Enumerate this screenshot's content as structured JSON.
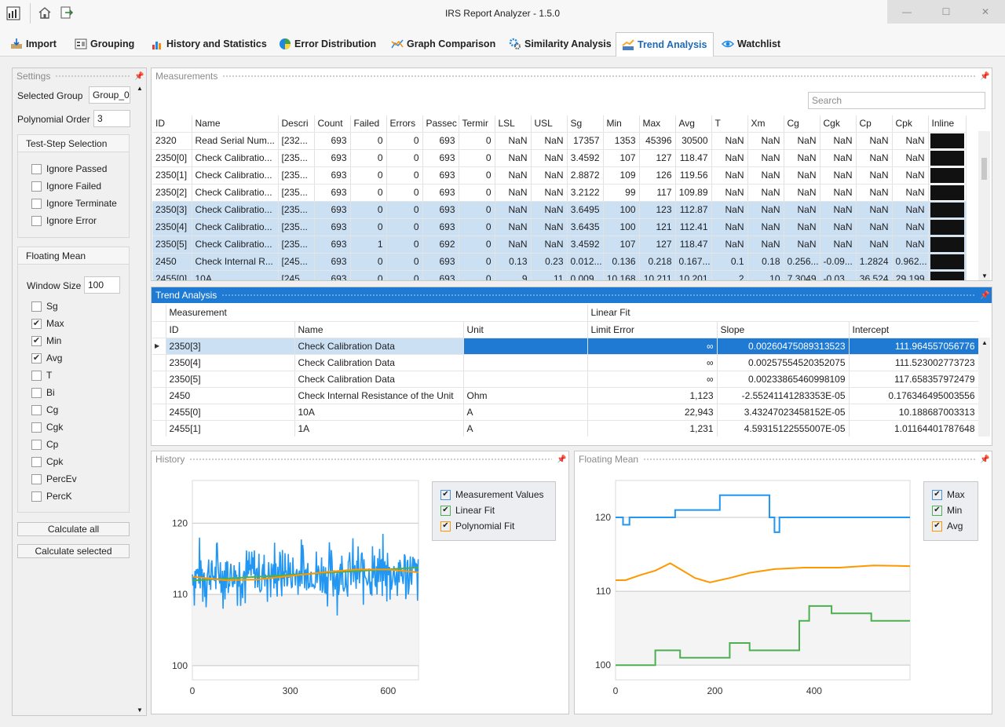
{
  "app": {
    "title": "IRS Report Analyzer - 1.5.0",
    "window_buttons": [
      "—",
      "☐",
      "✕"
    ]
  },
  "tabs": [
    {
      "label": "Import",
      "icon": "import-icon"
    },
    {
      "label": "Grouping",
      "icon": "grouping-icon"
    },
    {
      "label": "History and Statistics",
      "icon": "history-icon"
    },
    {
      "label": "Error Distribution",
      "icon": "pie-icon"
    },
    {
      "label": "Graph Comparison",
      "icon": "graph-compare-icon"
    },
    {
      "label": "Similarity Analysis",
      "icon": "gears-icon"
    },
    {
      "label": "Trend Analysis",
      "icon": "trend-icon",
      "active": true
    },
    {
      "label": "Watchlist",
      "icon": "eye-icon"
    }
  ],
  "settings": {
    "header": "Settings",
    "selected_group_label": "Selected Group",
    "selected_group_value": "Group_0",
    "polynomial_order_label": "Polynomial Order",
    "polynomial_order_value": "3",
    "test_step_header": "Test-Step Selection",
    "test_step_options": [
      {
        "label": "Ignore Passed",
        "checked": false
      },
      {
        "label": "Ignore Failed",
        "checked": false
      },
      {
        "label": "Ignore Terminate",
        "checked": false
      },
      {
        "label": "Ignore Error",
        "checked": false
      }
    ],
    "floating_mean_header": "Floating Mean",
    "window_size_label": "Window Size",
    "window_size_value": "100",
    "metrics": [
      {
        "label": "Sg",
        "checked": false
      },
      {
        "label": "Max",
        "checked": true
      },
      {
        "label": "Min",
        "checked": true
      },
      {
        "label": "Avg",
        "checked": true
      },
      {
        "label": "T",
        "checked": false
      },
      {
        "label": "Bi",
        "checked": false
      },
      {
        "label": "Cg",
        "checked": false
      },
      {
        "label": "Cgk",
        "checked": false
      },
      {
        "label": "Cp",
        "checked": false
      },
      {
        "label": "Cpk",
        "checked": false
      },
      {
        "label": "PercEv",
        "checked": false
      },
      {
        "label": "PercK",
        "checked": false
      }
    ],
    "calculate_all": "Calculate all",
    "calculate_selected": "Calculate selected"
  },
  "measurements": {
    "header": "Measurements",
    "search_placeholder": "Search",
    "columns": [
      "ID",
      "Name",
      "Descri",
      "Count",
      "Failed",
      "Errors",
      "Passec",
      "Termir",
      "LSL",
      "USL",
      "Sg",
      "Min",
      "Max",
      "Avg",
      "T",
      "Xm",
      "Cg",
      "Cgk",
      "Cp",
      "Cpk",
      "Inline"
    ],
    "rows": [
      {
        "sel": false,
        "cells": [
          "2320",
          "Read Serial Num...",
          "[232...",
          "693",
          "0",
          "0",
          "693",
          "0",
          "NaN",
          "NaN",
          "17357",
          "1353",
          "45396",
          "30500",
          "NaN",
          "NaN",
          "NaN",
          "NaN",
          "NaN",
          "NaN"
        ]
      },
      {
        "sel": false,
        "cells": [
          "2350[0]",
          "Check Calibratio...",
          "[235...",
          "693",
          "0",
          "0",
          "693",
          "0",
          "NaN",
          "NaN",
          "3.4592",
          "107",
          "127",
          "118.47",
          "NaN",
          "NaN",
          "NaN",
          "NaN",
          "NaN",
          "NaN"
        ]
      },
      {
        "sel": false,
        "cells": [
          "2350[1]",
          "Check Calibratio...",
          "[235...",
          "693",
          "0",
          "0",
          "693",
          "0",
          "NaN",
          "NaN",
          "2.8872",
          "109",
          "126",
          "119.56",
          "NaN",
          "NaN",
          "NaN",
          "NaN",
          "NaN",
          "NaN"
        ]
      },
      {
        "sel": false,
        "cells": [
          "2350[2]",
          "Check Calibratio...",
          "[235...",
          "693",
          "0",
          "0",
          "693",
          "0",
          "NaN",
          "NaN",
          "3.2122",
          "99",
          "117",
          "109.89",
          "NaN",
          "NaN",
          "NaN",
          "NaN",
          "NaN",
          "NaN"
        ]
      },
      {
        "sel": true,
        "cells": [
          "2350[3]",
          "Check Calibratio...",
          "[235...",
          "693",
          "0",
          "0",
          "693",
          "0",
          "NaN",
          "NaN",
          "3.6495",
          "100",
          "123",
          "112.87",
          "NaN",
          "NaN",
          "NaN",
          "NaN",
          "NaN",
          "NaN"
        ]
      },
      {
        "sel": true,
        "cells": [
          "2350[4]",
          "Check Calibratio...",
          "[235...",
          "693",
          "0",
          "0",
          "693",
          "0",
          "NaN",
          "NaN",
          "3.6435",
          "100",
          "121",
          "112.41",
          "NaN",
          "NaN",
          "NaN",
          "NaN",
          "NaN",
          "NaN"
        ]
      },
      {
        "sel": true,
        "cells": [
          "2350[5]",
          "Check Calibratio...",
          "[235...",
          "693",
          "1",
          "0",
          "692",
          "0",
          "NaN",
          "NaN",
          "3.4592",
          "107",
          "127",
          "118.47",
          "NaN",
          "NaN",
          "NaN",
          "NaN",
          "NaN",
          "NaN"
        ]
      },
      {
        "sel": true,
        "cells": [
          "2450",
          "Check Internal R...",
          "[245...",
          "693",
          "0",
          "0",
          "693",
          "0",
          "0.13",
          "0.23",
          "0.012...",
          "0.136",
          "0.218",
          "0.167...",
          "0.1",
          "0.18",
          "0.256...",
          "-0.09...",
          "1.2824",
          "0.962..."
        ]
      },
      {
        "sel": true,
        "cells": [
          "2455[0]",
          "10A",
          "[245...",
          "693",
          "0",
          "0",
          "693",
          "0",
          "9",
          "11",
          "0.009...",
          "10.168",
          "10.211",
          "10.201",
          "2",
          "10",
          "7.3049",
          "-0.03...",
          "36.524",
          "29.199"
        ]
      }
    ]
  },
  "trend": {
    "header": "Trend Analysis",
    "group_measurement": "Measurement",
    "group_linear_fit": "Linear Fit",
    "columns": [
      "ID",
      "Name",
      "Unit",
      "Limit Error",
      "Slope",
      "Intercept"
    ],
    "rows": [
      {
        "current": true,
        "cells": [
          "2350[3]",
          "Check Calibration Data",
          "",
          "∞",
          "0.00260475089313523",
          "111.964557056776"
        ]
      },
      {
        "current": false,
        "cells": [
          "2350[4]",
          "Check Calibration Data",
          "",
          "∞",
          "0.00257554520352075",
          "111.523002773723"
        ]
      },
      {
        "current": false,
        "cells": [
          "2350[5]",
          "Check Calibration Data",
          "",
          "∞",
          "0.00233865460998109",
          "117.658357972479"
        ]
      },
      {
        "current": false,
        "cells": [
          "2450",
          "Check Internal Resistance of the Unit",
          "Ohm",
          "1,123",
          "-2.55241141283353E-05",
          "0.176346495003556"
        ]
      },
      {
        "current": false,
        "cells": [
          "2455[0]",
          "10A",
          "A",
          "22,943",
          "3.43247023458152E-05",
          "10.188687003313"
        ]
      },
      {
        "current": false,
        "cells": [
          "2455[1]",
          "1A",
          "A",
          "1,231",
          "4.59315122555007E-05",
          "1.01164401787648"
        ]
      }
    ]
  },
  "history": {
    "header": "History",
    "legend": [
      {
        "label": "Measurement Values",
        "color": "#2196f3"
      },
      {
        "label": "Linear Fit",
        "color": "#4caf50"
      },
      {
        "label": "Polynomial Fit",
        "color": "#ff9800"
      }
    ],
    "chart_data": {
      "type": "line",
      "xlim": [
        0,
        693
      ],
      "ylim": [
        98,
        126
      ],
      "xticks": [
        "0",
        "300",
        "600"
      ],
      "yticks": [
        "100",
        "110",
        "120"
      ],
      "series": [
        {
          "name": "Measurement Values",
          "mean": 112.87,
          "min": 100,
          "max": 123,
          "n": 693
        },
        {
          "name": "Linear Fit",
          "x": [
            0,
            693
          ],
          "y": [
            111.96,
            113.77
          ]
        },
        {
          "name": "Polynomial Fit",
          "x": [
            0,
            100,
            200,
            300,
            400,
            500,
            600,
            693
          ],
          "y": [
            112.5,
            112.0,
            112.1,
            112.6,
            113.1,
            113.5,
            113.5,
            113.1
          ]
        }
      ]
    }
  },
  "floating_mean": {
    "header": "Floating Mean",
    "legend": [
      {
        "label": "Max",
        "color": "#2196f3"
      },
      {
        "label": "Min",
        "color": "#4caf50"
      },
      {
        "label": "Avg",
        "color": "#ff9800"
      }
    ],
    "chart_data": {
      "type": "line",
      "xlim": [
        0,
        593
      ],
      "ylim": [
        98,
        125
      ],
      "xticks": [
        "0",
        "200",
        "400"
      ],
      "yticks": [
        "100",
        "110",
        "120"
      ],
      "series": [
        {
          "name": "Max",
          "x": [
            0,
            15,
            15,
            28,
            28,
            120,
            120,
            210,
            210,
            310,
            310,
            320,
            320,
            330,
            330,
            375,
            375,
            593
          ],
          "y": [
            120,
            120,
            119,
            119,
            120,
            120,
            121,
            121,
            123,
            123,
            120,
            120,
            118,
            118,
            120,
            120,
            120,
            120
          ]
        },
        {
          "name": "Min",
          "x": [
            0,
            80,
            80,
            130,
            130,
            230,
            230,
            270,
            270,
            370,
            370,
            390,
            390,
            435,
            435,
            515,
            515,
            593
          ],
          "y": [
            100,
            100,
            102,
            102,
            101,
            101,
            103,
            103,
            102,
            102,
            106,
            106,
            108,
            108,
            107,
            107,
            106,
            106
          ]
        },
        {
          "name": "Avg",
          "x": [
            0,
            20,
            50,
            80,
            110,
            130,
            160,
            190,
            230,
            270,
            320,
            380,
            450,
            520,
            593
          ],
          "y": [
            111.5,
            111.5,
            112.2,
            112.8,
            113.8,
            113.0,
            111.8,
            111.2,
            111.8,
            112.5,
            113.0,
            113.2,
            113.2,
            113.5,
            113.4
          ]
        }
      ]
    }
  }
}
